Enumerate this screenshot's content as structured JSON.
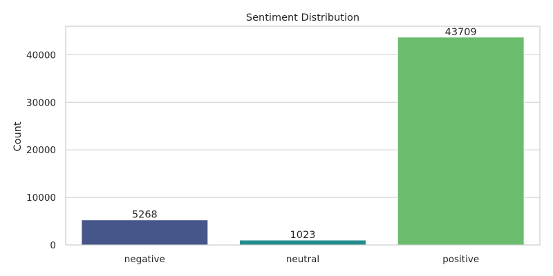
{
  "chart_data": {
    "type": "bar",
    "title": "Sentiment Distribution",
    "xlabel": "",
    "ylabel": "Count",
    "categories": [
      "negative",
      "neutral",
      "positive"
    ],
    "values": [
      5268,
      1023,
      43709
    ],
    "colors": [
      "#46568b",
      "#238c8c",
      "#6bbd6d"
    ],
    "ylim": [
      0,
      46000
    ],
    "yticks": [
      0,
      10000,
      20000,
      30000,
      40000
    ],
    "grid": true
  }
}
